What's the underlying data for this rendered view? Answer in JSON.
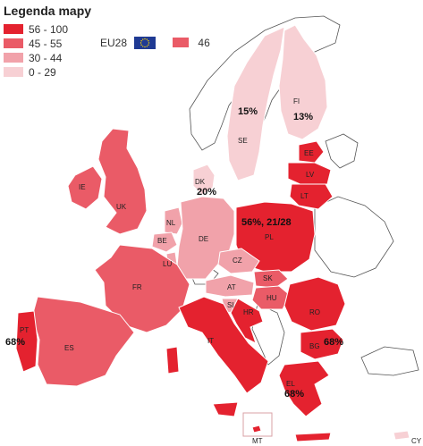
{
  "legend": {
    "title": "Legenda mapy",
    "items": [
      {
        "label": "56 - 100",
        "color": "#e4222f"
      },
      {
        "label": "45 - 55",
        "color": "#ea5b67"
      },
      {
        "label": "30 - 44",
        "color": "#f1a2aa"
      },
      {
        "label": "0 - 29",
        "color": "#f7d0d4"
      }
    ]
  },
  "eu": {
    "label": "EU28",
    "value": "46",
    "color": "#ea5b67",
    "flag_color": "#1f3a93",
    "star_color": "#ffd700"
  },
  "map_data": {
    "countries": [
      {
        "code": "FI",
        "category": 4
      },
      {
        "code": "SE",
        "category": 4
      },
      {
        "code": "EE",
        "category": 1
      },
      {
        "code": "LV",
        "category": 1
      },
      {
        "code": "LT",
        "category": 1
      },
      {
        "code": "DK",
        "category": 4
      },
      {
        "code": "IE",
        "category": 2
      },
      {
        "code": "UK",
        "category": 2
      },
      {
        "code": "NL",
        "category": 3
      },
      {
        "code": "BE",
        "category": 3
      },
      {
        "code": "LU",
        "category": 3
      },
      {
        "code": "DE",
        "category": 3
      },
      {
        "code": "PL",
        "category": 1
      },
      {
        "code": "CZ",
        "category": 3
      },
      {
        "code": "SK",
        "category": 2
      },
      {
        "code": "AT",
        "category": 3
      },
      {
        "code": "HU",
        "category": 2
      },
      {
        "code": "SI",
        "category": 3
      },
      {
        "code": "HR",
        "category": 1
      },
      {
        "code": "RO",
        "category": 1
      },
      {
        "code": "BG",
        "category": 1
      },
      {
        "code": "FR",
        "category": 2
      },
      {
        "code": "ES",
        "category": 2
      },
      {
        "code": "PT",
        "category": 1
      },
      {
        "code": "IT",
        "category": 1
      },
      {
        "code": "EL",
        "category": 1
      },
      {
        "code": "MT",
        "category": 1
      },
      {
        "code": "CY",
        "category": 4
      }
    ],
    "annotations": [
      {
        "country": "SE",
        "text": "15%"
      },
      {
        "country": "FI",
        "text": "13%"
      },
      {
        "country": "DK",
        "text": "20%"
      },
      {
        "country": "PL",
        "text": "56%, 21/28"
      },
      {
        "country": "PT",
        "text": "68%"
      },
      {
        "country": "BG",
        "text": "68%"
      },
      {
        "country": "EL",
        "text": "68%"
      }
    ]
  }
}
